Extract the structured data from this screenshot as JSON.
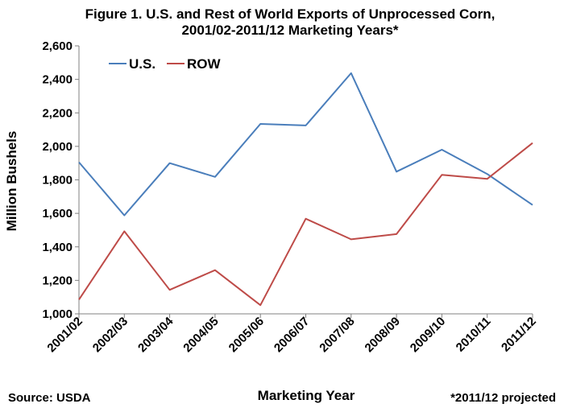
{
  "chart_data": {
    "type": "line",
    "title_lines": [
      "Figure 1. U.S. and Rest of World Exports of Unprocessed Corn,",
      "2001/02-2011/12 Marketing Years*"
    ],
    "xlabel": "Marketing Year",
    "ylabel": "Million Bushels",
    "categories": [
      "2001/02",
      "2002/03",
      "2003/04",
      "2004/05",
      "2005/06",
      "2006/07",
      "2007/08",
      "2008/09",
      "2009/10",
      "2010/11",
      "2011/12"
    ],
    "yticks": [
      "1,000",
      "1,200",
      "1,400",
      "1,600",
      "1,800",
      "2,000",
      "2,200",
      "2,400",
      "2,600"
    ],
    "ylim": [
      1000,
      2600
    ],
    "legend_position": "top-left",
    "grid": false,
    "series": [
      {
        "name": "U.S.",
        "color": "#4a7ebb",
        "values": [
          1905,
          1588,
          1900,
          1818,
          2134,
          2125,
          2437,
          1849,
          1980,
          1835,
          1650
        ]
      },
      {
        "name": "ROW",
        "color": "#be4b48",
        "values": [
          1085,
          1493,
          1143,
          1261,
          1052,
          1568,
          1445,
          1476,
          1830,
          1806,
          2020
        ]
      }
    ]
  },
  "footer": {
    "source": "Source: USDA",
    "note": "*2011/12 projected"
  }
}
